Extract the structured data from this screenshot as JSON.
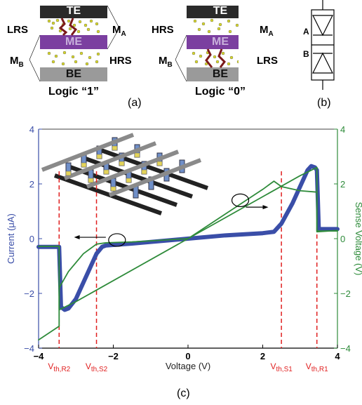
{
  "panel_a": {
    "cell1": {
      "top": "TE",
      "middle": "ME",
      "bottom": "BE",
      "left_top": "LRS",
      "left_bottom": "M",
      "left_bottom_sub": "B",
      "right_top": "M",
      "right_top_sub": "A",
      "right_bottom": "HRS",
      "caption": "Logic “1”"
    },
    "cell0": {
      "top": "TE",
      "middle": "ME",
      "bottom": "BE",
      "left_top": "HRS",
      "left_bottom": "M",
      "left_bottom_sub": "B",
      "right_top": "M",
      "right_top_sub": "A",
      "right_bottom": "LRS",
      "caption": "Logic “0”"
    },
    "label": "(a)"
  },
  "panel_b": {
    "label_a": "A",
    "label_b": "B",
    "label": "(b)"
  },
  "panel_c": {
    "label": "(c)"
  },
  "colors": {
    "current": "#3a4ea8",
    "sense": "#2e8b3a",
    "threshold": "#e02020",
    "me": "#7b3fa0",
    "filament": "#e8e830"
  },
  "chart_data": {
    "type": "line",
    "xlabel": "Voltage (V)",
    "ylabel": "Current (μA)",
    "y2label": "Sense Voltage (V)",
    "xlim": [
      -4,
      4
    ],
    "ylim": [
      -4,
      4
    ],
    "y2lim": [
      -4,
      4
    ],
    "x_ticks": [
      "−4",
      "−2",
      "0",
      "2",
      "4"
    ],
    "y_ticks": [
      "−4",
      "−2",
      "0",
      "2",
      "4"
    ],
    "y2_ticks": [
      "−4",
      "−2",
      "0",
      "2",
      "4"
    ],
    "thresholds": [
      {
        "label": "V",
        "sub": "th,R2",
        "x": -3.45
      },
      {
        "label": "V",
        "sub": "th,S2",
        "x": -2.45
      },
      {
        "label": "V",
        "sub": "th,S1",
        "x": 2.5
      },
      {
        "label": "V",
        "sub": "th,R1",
        "x": 3.45
      }
    ],
    "series": [
      {
        "axis": "left",
        "x": [
          -4,
          -3.5,
          -3.45,
          -3.4,
          -3.3,
          -3.2,
          -3.0,
          -2.8,
          -2.6,
          -2.45,
          -2.3,
          -2.2,
          -1.5,
          -1,
          0,
          1,
          2,
          2.3,
          2.5,
          2.8,
          3.0,
          3.2,
          3.3,
          3.4,
          3.45,
          3.5,
          4
        ],
        "y": [
          -0.3,
          -0.3,
          -0.3,
          -2.5,
          -2.6,
          -2.55,
          -2.2,
          -1.6,
          -1.0,
          -0.55,
          -0.3,
          -0.25,
          -0.18,
          -0.12,
          0,
          0.12,
          0.2,
          0.25,
          0.55,
          1.3,
          1.9,
          2.5,
          2.65,
          2.6,
          2.5,
          0.35,
          0.35
        ]
      },
      {
        "axis": "right",
        "x": [
          -4,
          -3.45,
          -3.45,
          -3.2,
          -2.8,
          -2.45,
          -2.2,
          -1.5,
          -1,
          0,
          1,
          2,
          2.3,
          2.5,
          3.0,
          3.45,
          3.45,
          4
        ],
        "y": [
          -3.7,
          -3.2,
          -1.8,
          -1.2,
          -0.55,
          -0.2,
          -0.15,
          -0.12,
          -0.08,
          0,
          0.9,
          1.8,
          2.1,
          1.9,
          1.75,
          1.7,
          0.25,
          0.3
        ]
      },
      {
        "axis": "right",
        "x": [
          -4,
          -3.45,
          -3.45,
          -3.0,
          0,
          3.0,
          3.45,
          3.45,
          4
        ],
        "y": [
          -0.28,
          -0.28,
          -2.6,
          -2.3,
          0,
          2.3,
          2.6,
          0.28,
          0.28
        ]
      }
    ]
  }
}
